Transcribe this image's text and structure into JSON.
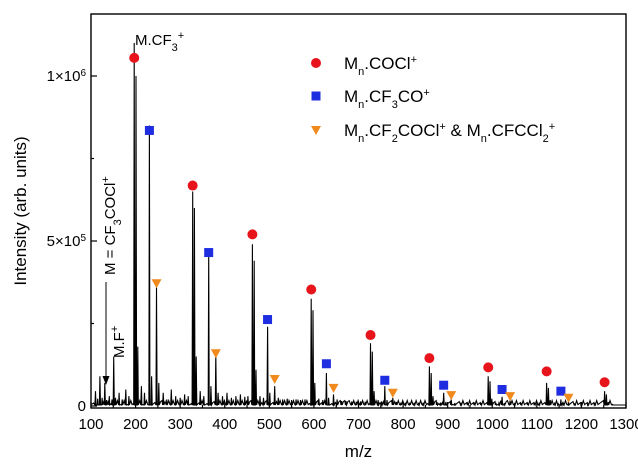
{
  "chart_data": {
    "type": "line",
    "xlabel": "m/z",
    "ylabel": "Intensity (arb. units)",
    "xlim": [
      100,
      1300
    ],
    "ylim": [
      0,
      1000000
    ],
    "x_ticks": [
      "100",
      "200",
      "300",
      "400",
      "500",
      "600",
      "700",
      "800",
      "900",
      "1000",
      "1100",
      "1200",
      "1300"
    ],
    "y_ticks": [
      {
        "value": 0,
        "mantissa": "0",
        "exp": ""
      },
      {
        "value": 500000,
        "mantissa": "5×10",
        "exp": "5"
      },
      {
        "value": 1000000,
        "mantissa": "1×10",
        "exp": "6"
      }
    ],
    "legend": [
      {
        "text": "Mn.COCl+",
        "parts": [
          [
            "M",
            ""
          ],
          [
            "n",
            "sub"
          ],
          [
            ".COCl",
            ""
          ],
          [
            "+",
            "sup"
          ]
        ],
        "marker": "circle",
        "color": "#e8141c"
      },
      {
        "text": "Mn.CF3CO+",
        "parts": [
          [
            "M",
            ""
          ],
          [
            "n",
            "sub"
          ],
          [
            ".CF",
            ""
          ],
          [
            "3",
            "sub"
          ],
          [
            "CO",
            ""
          ],
          [
            "+",
            "sup"
          ]
        ],
        "marker": "square",
        "color": "#1f2de0"
      },
      {
        "text": "Mn.CF2COCl+ & Mn.CFCCl2+",
        "parts": [
          [
            "M",
            ""
          ],
          [
            "n",
            "sub"
          ],
          [
            ".CF",
            ""
          ],
          [
            "2",
            "sub"
          ],
          [
            "COCl",
            ""
          ],
          [
            "+",
            "sup"
          ],
          [
            " & M",
            ""
          ],
          [
            "n",
            "sub"
          ],
          [
            ".CFCCl",
            ""
          ],
          [
            "2",
            "sub"
          ],
          [
            "+",
            "sup"
          ]
        ],
        "marker": "triangle",
        "color": "#f08a1c"
      }
    ],
    "annotations": {
      "mcf3": {
        "text": "M.CF3+",
        "parts": [
          [
            "M.CF",
            ""
          ],
          [
            "3",
            "sub"
          ],
          [
            "+",
            "sup"
          ]
        ]
      },
      "mcf3cocl": {
        "text": "M = CF3COCl+",
        "parts": [
          [
            "M = CF",
            ""
          ],
          [
            "3",
            "sub"
          ],
          [
            "COCl",
            ""
          ],
          [
            "+",
            "sup"
          ]
        ]
      },
      "mf": {
        "text": "M.F+",
        "parts": [
          [
            "M.F",
            ""
          ],
          [
            "+",
            "sup"
          ]
        ]
      }
    },
    "series": [
      {
        "name": "Mn.COCl+",
        "marker": "circle",
        "color": "#e8141c",
        "points": [
          [
            197,
            1055000
          ],
          [
            328,
            668000
          ],
          [
            462,
            520000
          ],
          [
            594,
            353000
          ],
          [
            727,
            215000
          ],
          [
            859,
            145000
          ],
          [
            991,
            117000
          ],
          [
            1122,
            105000
          ],
          [
            1252,
            72000
          ]
        ]
      },
      {
        "name": "Mn.CF3CO+",
        "marker": "square",
        "color": "#1f2de0",
        "points": [
          [
            231,
            835000
          ],
          [
            364,
            465000
          ],
          [
            496,
            262000
          ],
          [
            628,
            128000
          ],
          [
            759,
            78000
          ],
          [
            891,
            63000
          ],
          [
            1022,
            50000
          ],
          [
            1154,
            45000
          ]
        ]
      },
      {
        "name": "Mn.CF2COCl+ & Mn.CFCCl2+",
        "marker": "triangle",
        "color": "#f08a1c",
        "points": [
          [
            247,
            372000
          ],
          [
            380,
            160000
          ],
          [
            512,
            82000
          ],
          [
            644,
            55000
          ],
          [
            777,
            40000
          ],
          [
            908,
            33000
          ],
          [
            1040,
            30000
          ],
          [
            1171,
            25000
          ]
        ]
      }
    ],
    "peaks": [
      [
        110,
        45000
      ],
      [
        115,
        22000
      ],
      [
        120,
        90000
      ],
      [
        125,
        25000
      ],
      [
        131,
        70000
      ],
      [
        135,
        18000
      ],
      [
        141,
        30000
      ],
      [
        147,
        20000
      ],
      [
        151,
        150000
      ],
      [
        155,
        25000
      ],
      [
        163,
        40000
      ],
      [
        170,
        20000
      ],
      [
        178,
        50000
      ],
      [
        185,
        30000
      ],
      [
        197,
        1100000
      ],
      [
        201,
        1000000
      ],
      [
        205,
        180000
      ],
      [
        213,
        60000
      ],
      [
        220,
        40000
      ],
      [
        231,
        850000
      ],
      [
        236,
        90000
      ],
      [
        247,
        360000
      ],
      [
        252,
        70000
      ],
      [
        262,
        40000
      ],
      [
        270,
        20000
      ],
      [
        280,
        50000
      ],
      [
        290,
        30000
      ],
      [
        300,
        25000
      ],
      [
        310,
        35000
      ],
      [
        318,
        30000
      ],
      [
        328,
        650000
      ],
      [
        332,
        600000
      ],
      [
        336,
        150000
      ],
      [
        345,
        45000
      ],
      [
        353,
        30000
      ],
      [
        364,
        470000
      ],
      [
        369,
        60000
      ],
      [
        380,
        160000
      ],
      [
        385,
        40000
      ],
      [
        395,
        30000
      ],
      [
        405,
        40000
      ],
      [
        415,
        25000
      ],
      [
        425,
        30000
      ],
      [
        435,
        35000
      ],
      [
        445,
        28000
      ],
      [
        452,
        30000
      ],
      [
        462,
        490000
      ],
      [
        466,
        440000
      ],
      [
        470,
        110000
      ],
      [
        479,
        30000
      ],
      [
        487,
        25000
      ],
      [
        496,
        240000
      ],
      [
        501,
        40000
      ],
      [
        512,
        60000
      ],
      [
        520,
        25000
      ],
      [
        530,
        20000
      ],
      [
        540,
        22000
      ],
      [
        550,
        18000
      ],
      [
        560,
        20000
      ],
      [
        570,
        18000
      ],
      [
        580,
        20000
      ],
      [
        594,
        325000
      ],
      [
        598,
        290000
      ],
      [
        602,
        70000
      ],
      [
        611,
        22000
      ],
      [
        620,
        18000
      ],
      [
        628,
        100000
      ],
      [
        633,
        25000
      ],
      [
        644,
        35000
      ],
      [
        652,
        20000
      ],
      [
        662,
        15000
      ],
      [
        672,
        15000
      ],
      [
        685,
        14000
      ],
      [
        695,
        13000
      ],
      [
        705,
        14000
      ],
      [
        715,
        13000
      ],
      [
        727,
        190000
      ],
      [
        731,
        165000
      ],
      [
        735,
        45000
      ],
      [
        744,
        18000
      ],
      [
        752,
        14000
      ],
      [
        759,
        60000
      ],
      [
        764,
        18000
      ],
      [
        777,
        25000
      ],
      [
        785,
        12000
      ],
      [
        795,
        10000
      ],
      [
        805,
        10000
      ],
      [
        815,
        10000
      ],
      [
        825,
        10000
      ],
      [
        835,
        10000
      ],
      [
        845,
        10000
      ],
      [
        859,
        120000
      ],
      [
        863,
        100000
      ],
      [
        867,
        30000
      ],
      [
        876,
        12000
      ],
      [
        884,
        10000
      ],
      [
        891,
        40000
      ],
      [
        896,
        12000
      ],
      [
        908,
        20000
      ],
      [
        916,
        9000
      ],
      [
        930,
        8000
      ],
      [
        945,
        8000
      ],
      [
        960,
        8000
      ],
      [
        975,
        9000
      ],
      [
        991,
        90000
      ],
      [
        995,
        75000
      ],
      [
        999,
        22000
      ],
      [
        1008,
        10000
      ],
      [
        1015,
        9000
      ],
      [
        1022,
        28000
      ],
      [
        1027,
        9000
      ],
      [
        1040,
        17000
      ],
      [
        1050,
        7000
      ],
      [
        1065,
        7000
      ],
      [
        1080,
        7000
      ],
      [
        1095,
        7000
      ],
      [
        1105,
        8000
      ],
      [
        1122,
        70000
      ],
      [
        1126,
        55000
      ],
      [
        1130,
        18000
      ],
      [
        1140,
        8000
      ],
      [
        1148,
        7000
      ],
      [
        1154,
        20000
      ],
      [
        1160,
        7000
      ],
      [
        1171,
        12000
      ],
      [
        1185,
        6000
      ],
      [
        1200,
        6000
      ],
      [
        1215,
        6000
      ],
      [
        1230,
        6000
      ],
      [
        1252,
        45000
      ],
      [
        1256,
        35000
      ],
      [
        1260,
        12000
      ],
      [
        1270,
        5000
      ]
    ]
  }
}
